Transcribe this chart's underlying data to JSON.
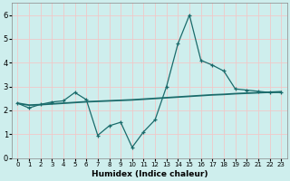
{
  "xlabel": "Humidex (Indice chaleur)",
  "bg_color": "#ceeeed",
  "line_color": "#1a6b6b",
  "grid_color": "#f0c8c8",
  "x_data": [
    0,
    1,
    2,
    3,
    4,
    5,
    6,
    7,
    8,
    9,
    10,
    11,
    12,
    13,
    14,
    15,
    16,
    17,
    18,
    19,
    20,
    21,
    22,
    23
  ],
  "y_main": [
    2.3,
    2.1,
    2.25,
    2.35,
    2.4,
    2.75,
    2.45,
    0.95,
    1.35,
    1.5,
    0.45,
    1.1,
    1.6,
    3.0,
    4.8,
    6.0,
    4.1,
    3.9,
    3.65,
    2.9,
    2.85,
    2.8,
    2.75,
    2.75
  ],
  "y_trend": [
    2.3,
    2.22,
    2.24,
    2.27,
    2.3,
    2.33,
    2.36,
    2.38,
    2.4,
    2.42,
    2.44,
    2.47,
    2.5,
    2.53,
    2.56,
    2.59,
    2.62,
    2.65,
    2.67,
    2.7,
    2.72,
    2.74,
    2.76,
    2.78
  ],
  "ylim": [
    0,
    6.5
  ],
  "xlim": [
    -0.5,
    23.5
  ],
  "yticks": [
    0,
    1,
    2,
    3,
    4,
    5,
    6
  ],
  "xticks": [
    0,
    1,
    2,
    3,
    4,
    5,
    6,
    7,
    8,
    9,
    10,
    11,
    12,
    13,
    14,
    15,
    16,
    17,
    18,
    19,
    20,
    21,
    22,
    23
  ],
  "xlabel_fontsize": 6.5,
  "ytick_fontsize": 6,
  "xtick_fontsize": 5.0
}
